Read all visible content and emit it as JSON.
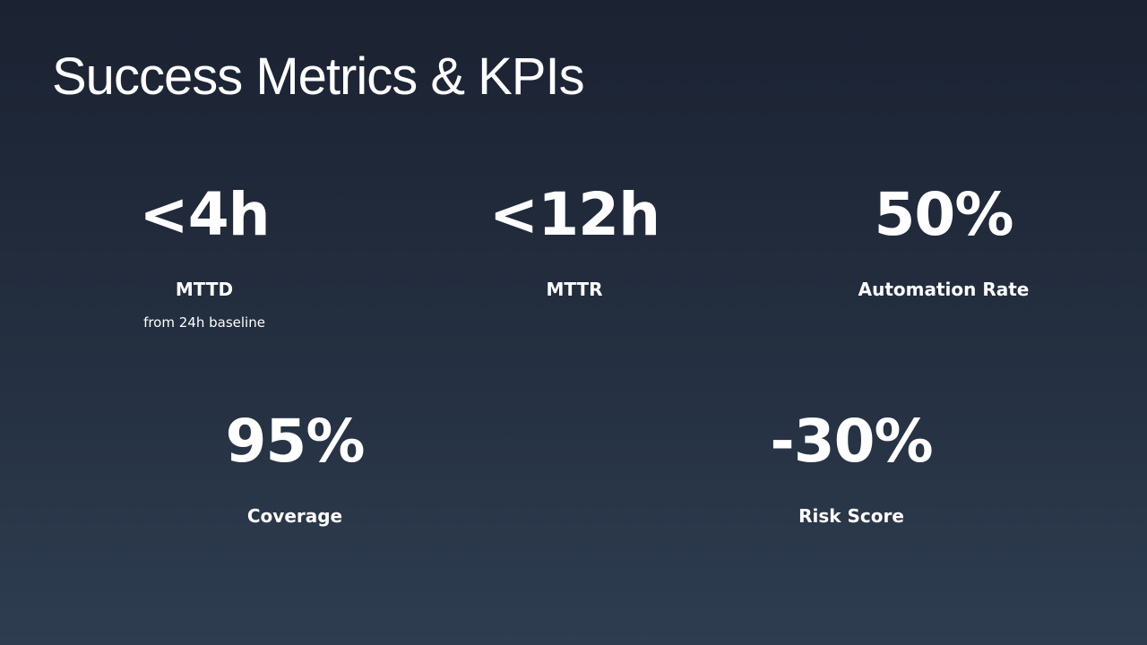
{
  "title": "Success Metrics & KPIs",
  "metrics": [
    {
      "value": "<4h",
      "label": "MTTD",
      "sub": "from 24h baseline"
    },
    {
      "value": "<12h",
      "label": "MTTR"
    },
    {
      "value": "50%",
      "label": "Automation Rate"
    },
    {
      "value": "95%",
      "label": "Coverage"
    },
    {
      "value": "-30%",
      "label": "Risk Score"
    }
  ]
}
